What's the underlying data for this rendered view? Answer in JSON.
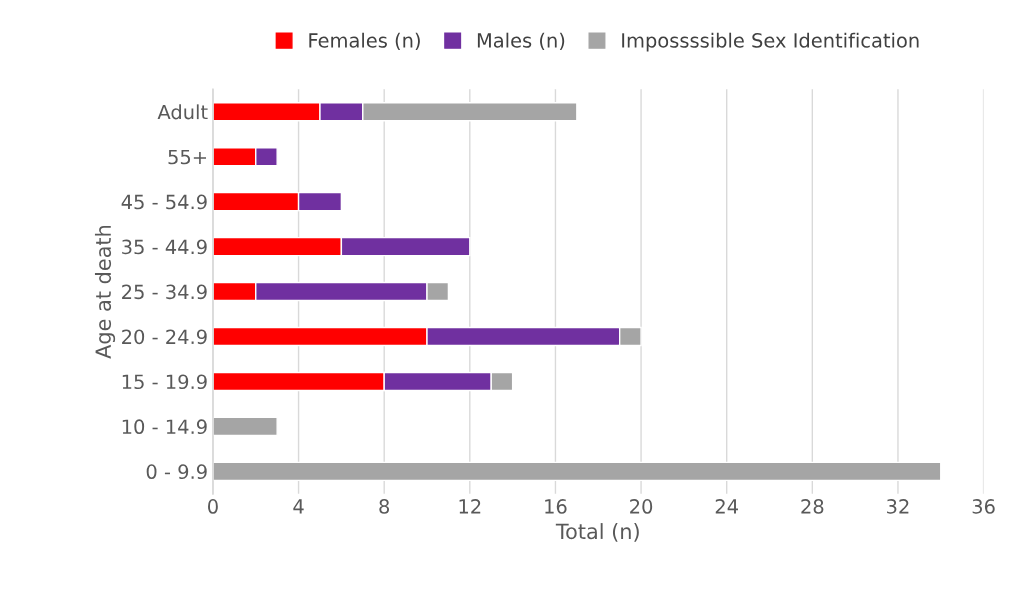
{
  "chart_data": {
    "type": "bar",
    "orientation": "horizontal",
    "stacked": true,
    "categories": [
      "Adult",
      "55+",
      "45 - 54.9",
      "35 - 44.9",
      "25 - 34.9",
      "20 - 24.9",
      "15 - 19.9",
      "10 - 14.9",
      "0 - 9.9"
    ],
    "series": [
      {
        "name": "Females (n)",
        "color": "#ff0000",
        "values": [
          5,
          2,
          4,
          6,
          2,
          10,
          8,
          null,
          null
        ]
      },
      {
        "name": "Males (n)",
        "color": "#7030a0",
        "values": [
          2,
          1,
          2,
          6,
          8,
          9,
          5,
          null,
          null
        ]
      },
      {
        "name": "Impossssible Sex Identification",
        "color": "#a5a5a5",
        "values": [
          10,
          null,
          null,
          null,
          1,
          1,
          1,
          3,
          34
        ]
      }
    ],
    "xlabel": "Total (n)",
    "ylabel": "Age at death",
    "xlim": [
      0,
      36
    ],
    "xticks": [
      0,
      4,
      8,
      12,
      16,
      20,
      24,
      28,
      32,
      36
    ],
    "grid": "x",
    "legend": "top"
  }
}
